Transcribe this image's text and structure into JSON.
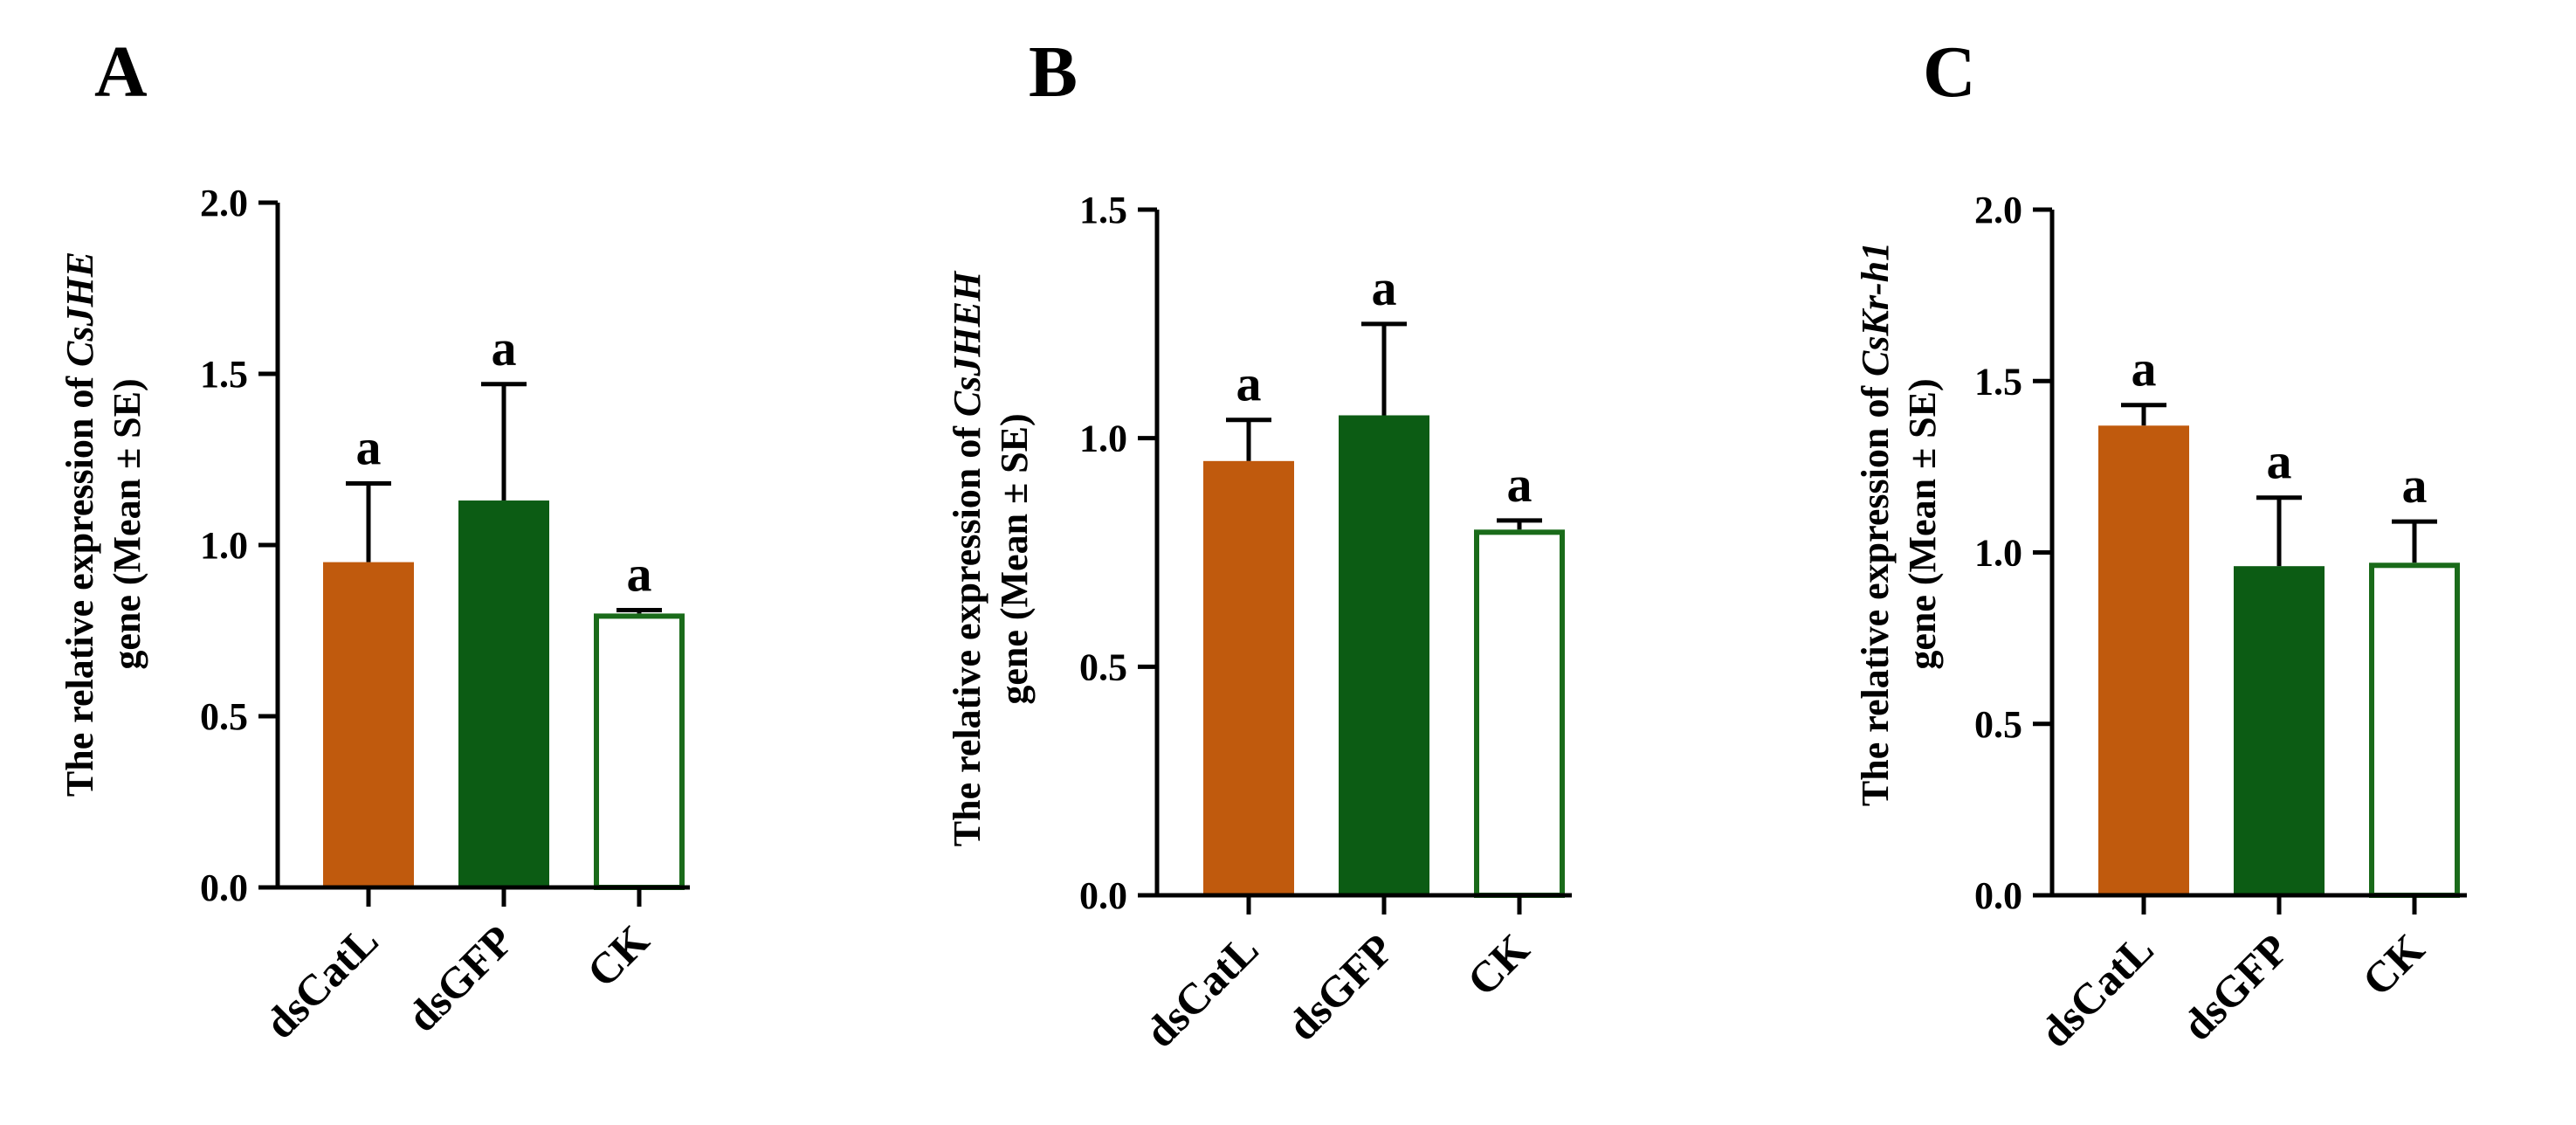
{
  "colors": {
    "dsCatL": "#c05a0d",
    "dsGFP": "#0c5c14",
    "CK_fill": "#ffffff",
    "CK_stroke": "#1a6b1a",
    "axis": "#000000"
  },
  "chart_data": [
    {
      "panel": "A",
      "type": "bar",
      "ylabel": {
        "prefix": "The relative expression of ",
        "gene": "CsJHE",
        "line2": "gene  (Mean ± SE)"
      },
      "categories": [
        "dsCatL",
        "dsGFP",
        "CK"
      ],
      "values": [
        0.95,
        1.13,
        0.8
      ],
      "errors": [
        0.23,
        0.34,
        0.01
      ],
      "significance": [
        "a",
        "a",
        "a"
      ],
      "ylim": [
        0,
        2.0
      ],
      "yticks": [
        0.0,
        0.5,
        1.0,
        1.5,
        2.0
      ],
      "ytick_labels": [
        "0.0",
        "0.5",
        "1.0",
        "1.5",
        "2.0"
      ],
      "legend": "none",
      "grid": false
    },
    {
      "panel": "B",
      "type": "bar",
      "ylabel": {
        "prefix": "The relative expression of ",
        "gene": "CsJHEH",
        "line2": "gene  (Mean ± SE)"
      },
      "categories": [
        "dsCatL",
        "dsGFP",
        "CK"
      ],
      "values": [
        0.95,
        1.05,
        0.8
      ],
      "errors": [
        0.09,
        0.2,
        0.02
      ],
      "significance": [
        "a",
        "a",
        "a"
      ],
      "ylim": [
        0,
        1.5
      ],
      "yticks": [
        0.0,
        0.5,
        1.0,
        1.5
      ],
      "ytick_labels": [
        "0.0",
        "0.5",
        "1.0",
        "1.5"
      ],
      "legend": "none",
      "grid": false
    },
    {
      "panel": "C",
      "type": "bar",
      "ylabel": {
        "prefix": "The relative expression of ",
        "gene": "CsKr-h1",
        "line2": "gene  (Mean ± SE)"
      },
      "categories": [
        "dsCatL",
        "dsGFP",
        "CK"
      ],
      "values": [
        1.37,
        0.96,
        0.97
      ],
      "errors": [
        0.06,
        0.2,
        0.12
      ],
      "significance": [
        "a",
        "a",
        "a"
      ],
      "ylim": [
        0,
        2.0
      ],
      "yticks": [
        0.0,
        0.5,
        1.0,
        1.5,
        2.0
      ],
      "ytick_labels": [
        "0.0",
        "0.5",
        "1.0",
        "1.5",
        "2.0"
      ],
      "legend": "none",
      "grid": false
    }
  ]
}
